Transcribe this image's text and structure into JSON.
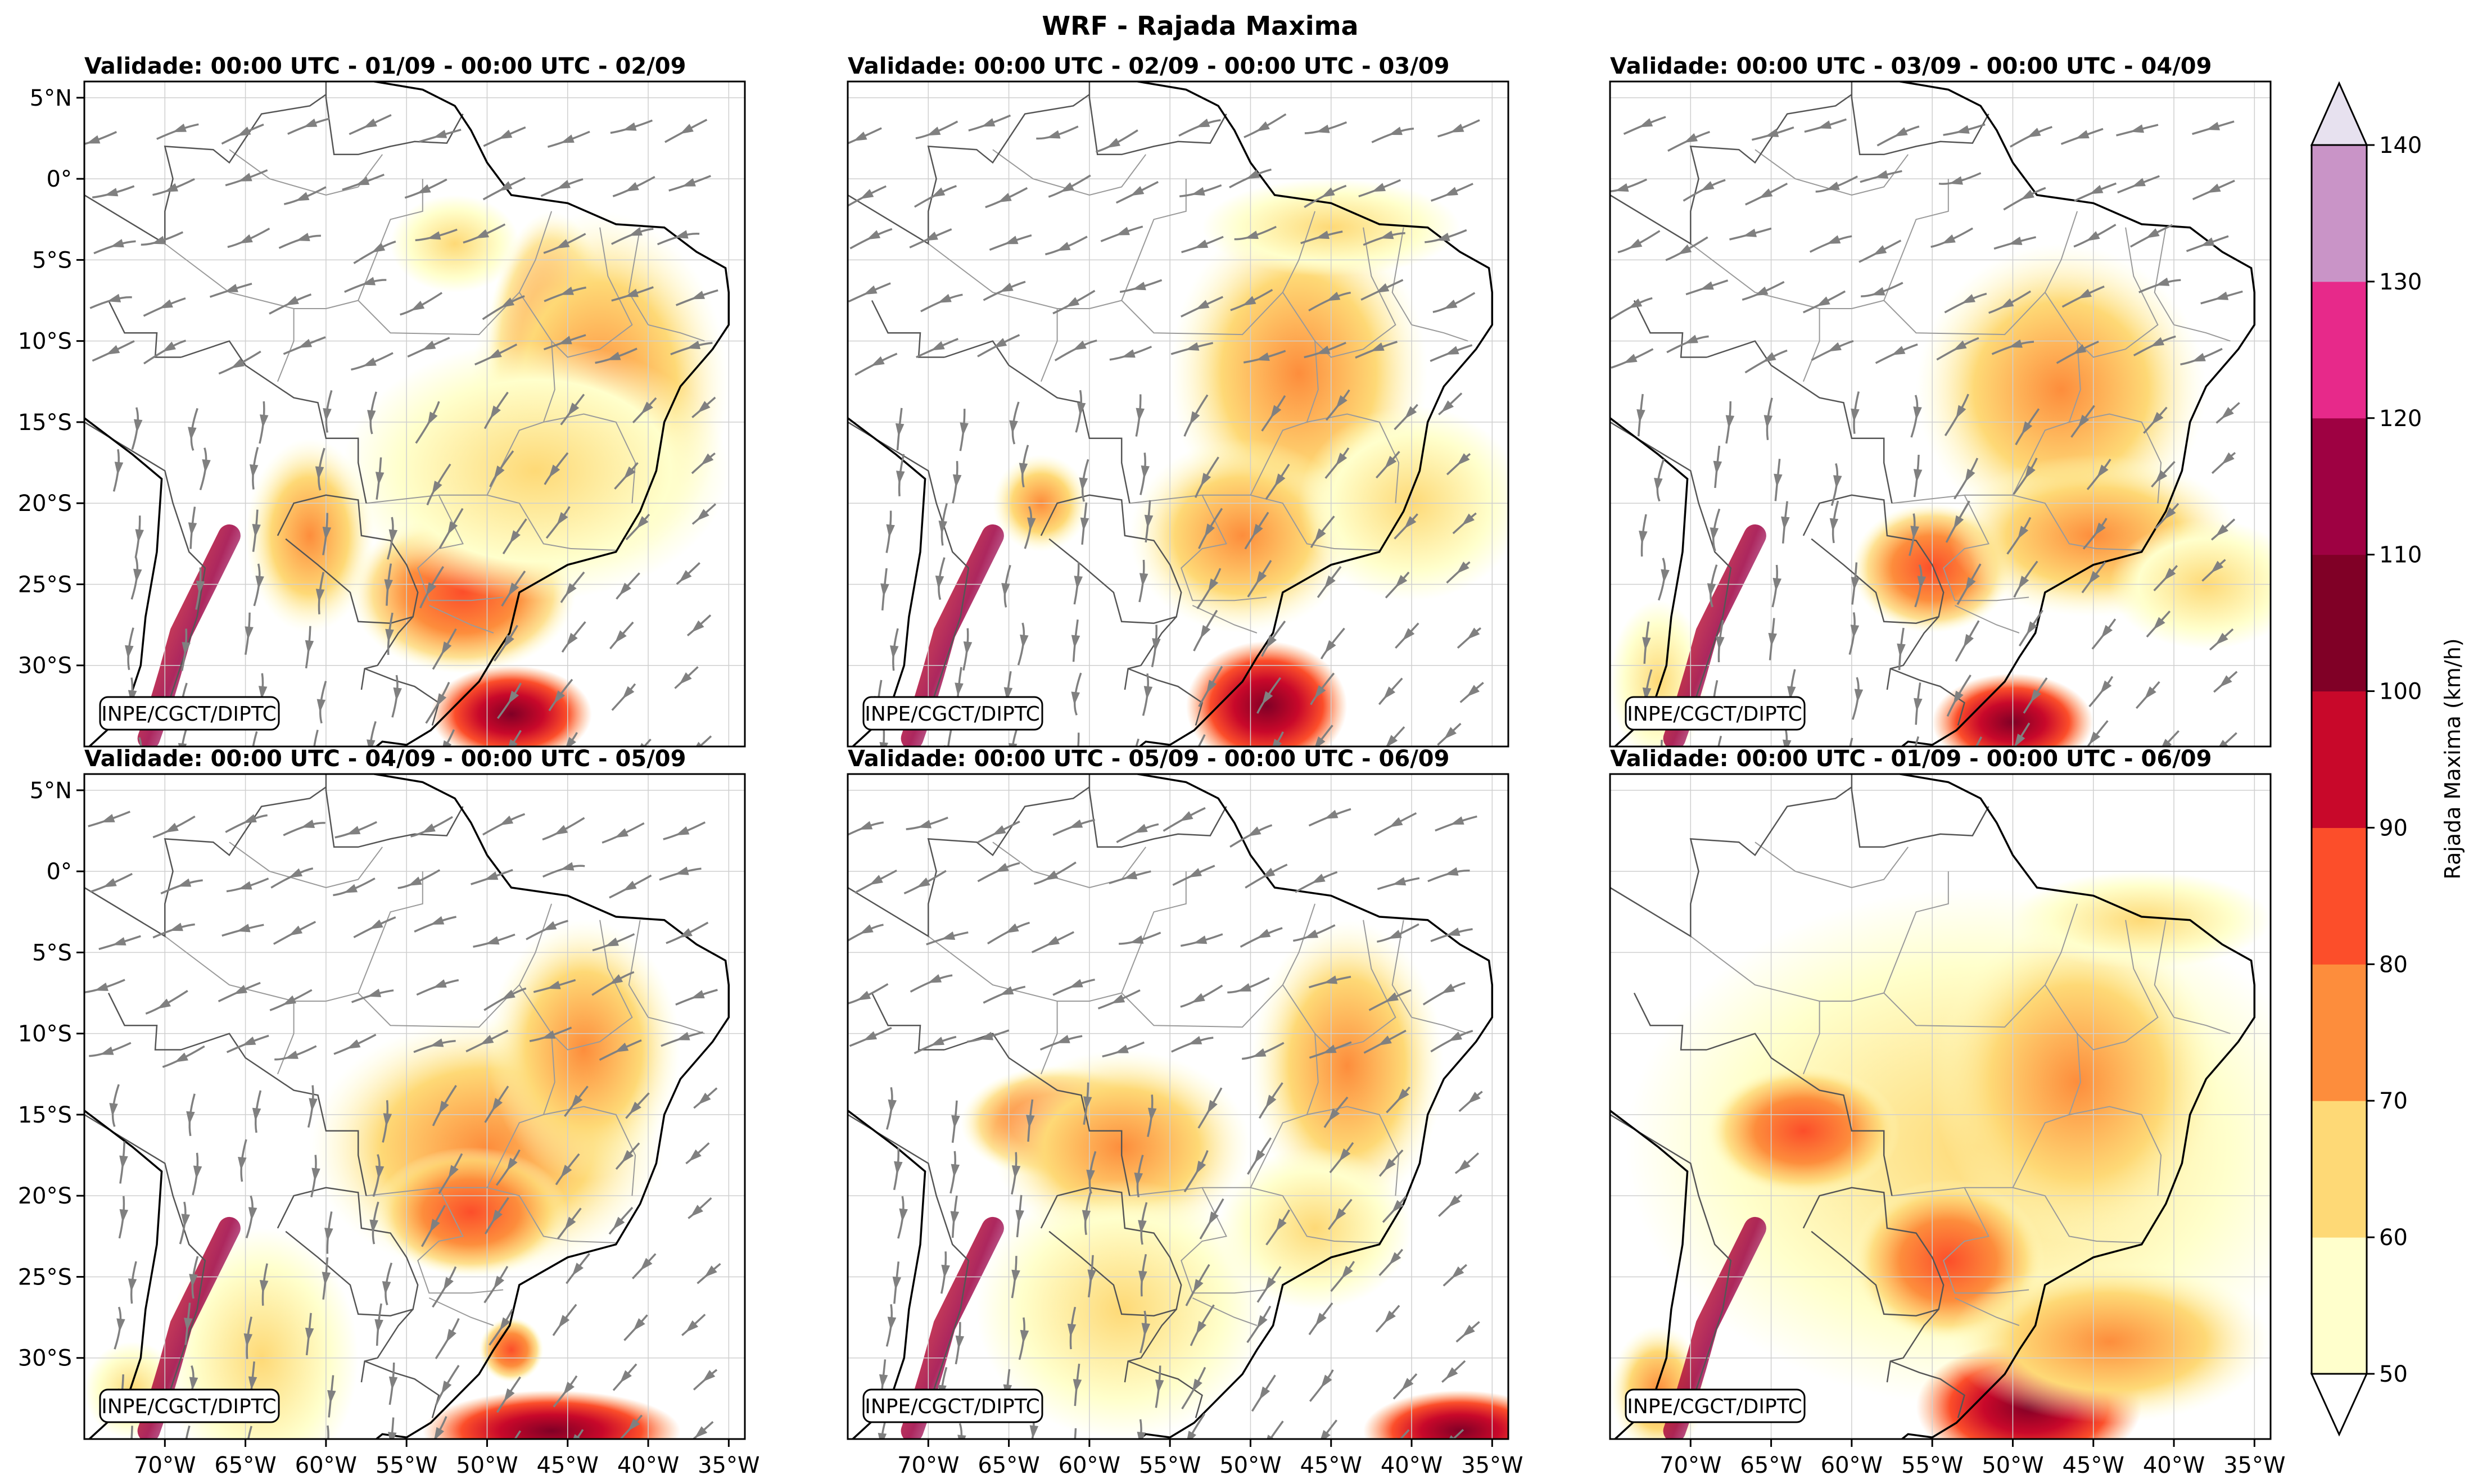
{
  "title": "WRF - Rajada Maxima",
  "panels": [
    {
      "title": "Validade: 00:00 UTC - 01/09 - 00:00 UTC - 02/09",
      "credit": "INPE/CGCT/DIPTC",
      "streamlines": true,
      "lat_labels": true,
      "lon_labels": false
    },
    {
      "title": "Validade: 00:00 UTC - 02/09 - 00:00 UTC - 03/09",
      "credit": "INPE/CGCT/DIPTC",
      "streamlines": true,
      "lat_labels": false,
      "lon_labels": false
    },
    {
      "title": "Validade: 00:00 UTC - 03/09 - 00:00 UTC - 04/09",
      "credit": "INPE/CGCT/DIPTC",
      "streamlines": true,
      "lat_labels": false,
      "lon_labels": false
    },
    {
      "title": "Validade: 00:00 UTC - 04/09 - 00:00 UTC - 05/09",
      "credit": "INPE/CGCT/DIPTC",
      "streamlines": true,
      "lat_labels": true,
      "lon_labels": true
    },
    {
      "title": "Validade: 00:00 UTC - 05/09 - 00:00 UTC - 06/09",
      "credit": "INPE/CGCT/DIPTC",
      "streamlines": true,
      "lat_labels": false,
      "lon_labels": true
    },
    {
      "title": "Validade: 00:00 UTC - 01/09 - 00:00 UTC - 06/09",
      "credit": "INPE/CGCT/DIPTC",
      "streamlines": false,
      "lat_labels": false,
      "lon_labels": true
    }
  ],
  "lat_ticks": [
    {
      "value": 5,
      "label": "5°N"
    },
    {
      "value": 0,
      "label": "0°"
    },
    {
      "value": -5,
      "label": "5°S"
    },
    {
      "value": -10,
      "label": "10°S"
    },
    {
      "value": -15,
      "label": "15°S"
    },
    {
      "value": -20,
      "label": "20°S"
    },
    {
      "value": -25,
      "label": "25°S"
    },
    {
      "value": -30,
      "label": "30°S"
    }
  ],
  "lon_ticks": [
    {
      "value": -70,
      "label": "70°W"
    },
    {
      "value": -65,
      "label": "65°W"
    },
    {
      "value": -60,
      "label": "60°W"
    },
    {
      "value": -55,
      "label": "55°W"
    },
    {
      "value": -50,
      "label": "50°W"
    },
    {
      "value": -45,
      "label": "45°W"
    },
    {
      "value": -40,
      "label": "40°W"
    },
    {
      "value": -35,
      "label": "35°W"
    }
  ],
  "extent": {
    "lon_min": -75,
    "lon_max": -34,
    "lat_min": -35,
    "lat_max": 6
  },
  "colorbar": {
    "label": "Rajada Maxima (km/h)",
    "levels": [
      50,
      60,
      70,
      80,
      90,
      100,
      110,
      120,
      130,
      140
    ],
    "colors": [
      "#ffffcc",
      "#fed976",
      "#fd8d3c",
      "#fc4e2a",
      "#c8082a",
      "#800026",
      "#9e0142",
      "#e7298a",
      "#c994c7",
      "#e7e1ef"
    ],
    "under_color": "#ffffff",
    "over_color": "#e7e1ef"
  },
  "colors": {
    "streamline": "#808080",
    "coast": "#000000",
    "border": "#555555",
    "grid": "#cfcfcf"
  }
}
